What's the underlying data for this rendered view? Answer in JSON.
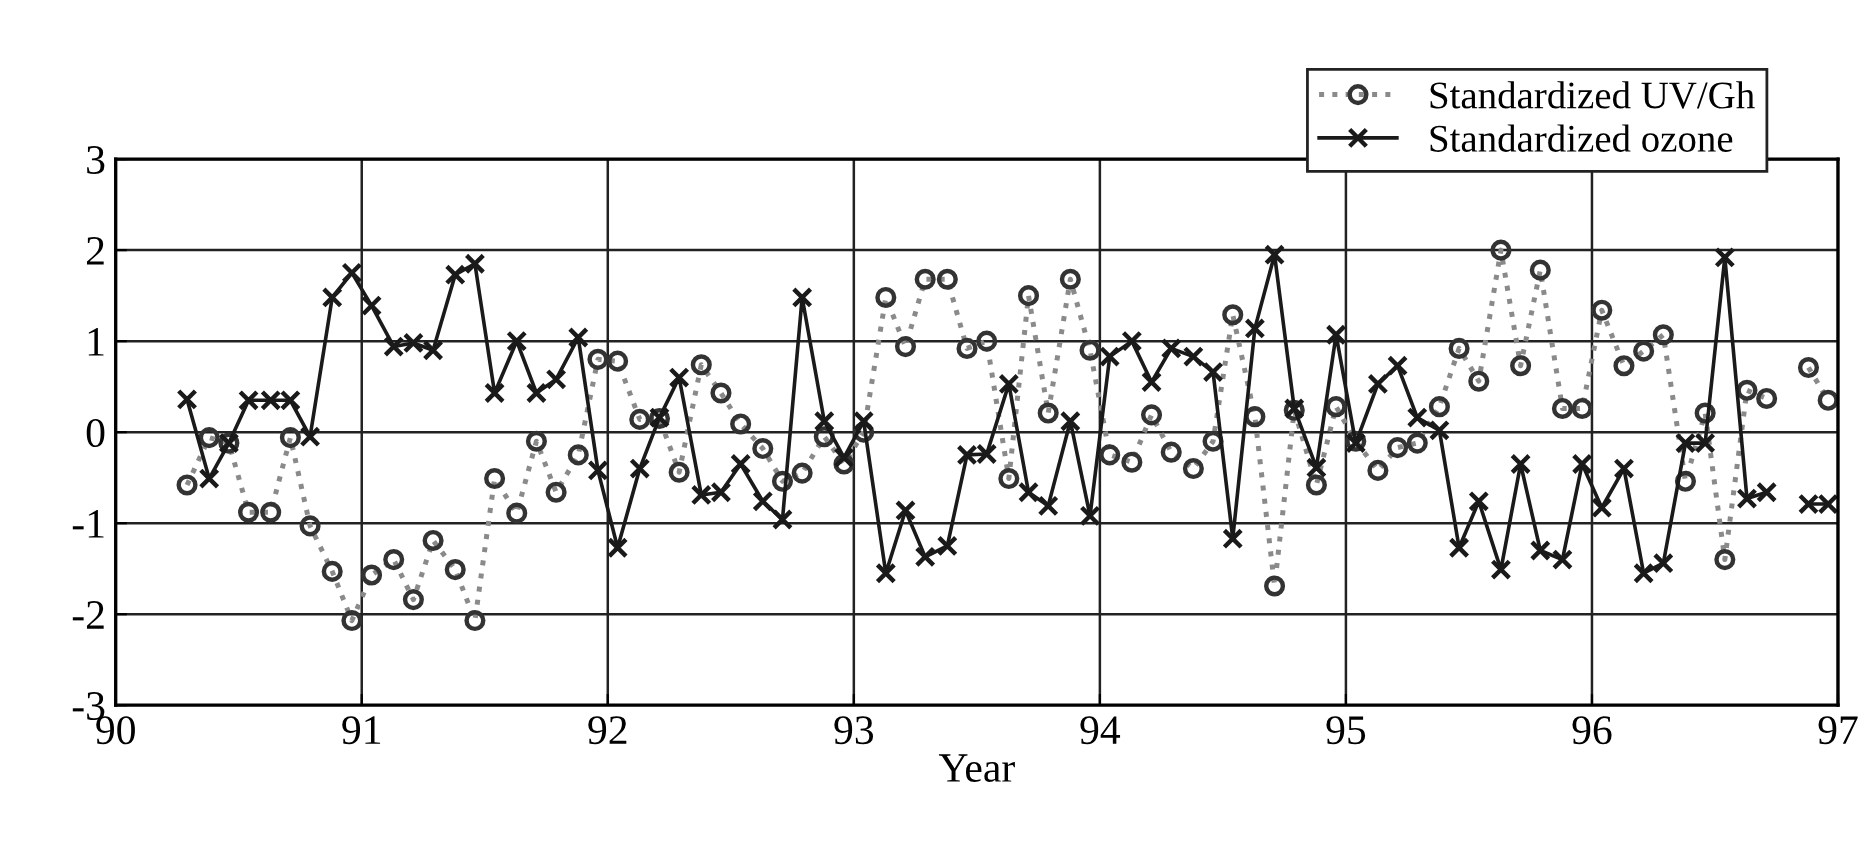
{
  "chart_data": {
    "type": "line",
    "xlabel": "Year",
    "xlim": [
      90,
      97
    ],
    "xticks": [
      90,
      91,
      92,
      93,
      94,
      95,
      96,
      97
    ],
    "ylim": [
      -3,
      3
    ],
    "yticks": [
      -3,
      -2,
      -1,
      0,
      1,
      2,
      3
    ],
    "grid": true,
    "legend": "top right",
    "x": [
      90.29,
      90.38,
      90.46,
      90.54,
      90.63,
      90.71,
      90.79,
      90.88,
      90.96,
      91.04,
      91.13,
      91.21,
      91.29,
      91.38,
      91.46,
      91.54,
      91.63,
      91.71,
      91.79,
      91.88,
      91.96,
      92.04,
      92.13,
      92.21,
      92.29,
      92.38,
      92.46,
      92.54,
      92.63,
      92.71,
      92.79,
      92.88,
      92.96,
      93.04,
      93.13,
      93.21,
      93.29,
      93.38,
      93.46,
      93.54,
      93.63,
      93.71,
      93.79,
      93.88,
      93.96,
      94.04,
      94.13,
      94.21,
      94.29,
      94.38,
      94.46,
      94.54,
      94.63,
      94.71,
      94.79,
      94.88,
      94.96,
      95.04,
      95.13,
      95.21,
      95.29,
      95.38,
      95.46,
      95.54,
      95.63,
      95.71,
      95.79,
      95.88,
      95.96,
      96.04,
      96.13,
      96.21,
      96.29,
      96.38,
      96.46,
      96.54,
      96.63,
      96.71,
      96.79,
      96.88,
      96.96
    ],
    "series": [
      {
        "name": "Standardized UV/Gh",
        "color": "#8a8a8a",
        "marker": "circle",
        "line_style": "dotted",
        "values": [
          -0.58,
          -0.06,
          -0.12,
          -0.88,
          -0.88,
          -0.06,
          -1.03,
          -1.53,
          -2.07,
          -1.57,
          -1.4,
          -1.84,
          -1.19,
          -1.51,
          -2.07,
          -0.51,
          -0.89,
          -0.1,
          -0.66,
          -0.25,
          0.8,
          0.78,
          0.14,
          0.15,
          -0.44,
          0.74,
          0.43,
          0.09,
          -0.18,
          -0.54,
          -0.45,
          -0.05,
          -0.35,
          0.0,
          1.48,
          0.94,
          1.68,
          1.68,
          0.92,
          1.0,
          -0.51,
          1.5,
          0.21,
          1.68,
          0.9,
          -0.25,
          -0.33,
          0.19,
          -0.22,
          -0.4,
          -0.1,
          1.29,
          0.17,
          -1.69,
          0.24,
          -0.58,
          0.28,
          -0.1,
          -0.42,
          -0.17,
          -0.12,
          0.28,
          0.92,
          0.56,
          2.0,
          0.73,
          1.78,
          0.26,
          0.26,
          1.34,
          0.73,
          0.89,
          1.07,
          -0.54,
          0.21,
          -1.4,
          0.46,
          0.37,
          null,
          0.71,
          0.35
        ]
      },
      {
        "name": "Standardized ozone",
        "color": "#1a1a1a",
        "marker": "cross",
        "line_style": "solid",
        "values": [
          0.36,
          -0.51,
          -0.12,
          0.35,
          0.35,
          0.35,
          -0.05,
          1.48,
          1.75,
          1.39,
          0.94,
          0.98,
          0.9,
          1.73,
          1.85,
          0.43,
          1.0,
          0.43,
          0.58,
          1.04,
          -0.42,
          -1.27,
          -0.4,
          0.16,
          0.6,
          -0.69,
          -0.66,
          -0.35,
          -0.76,
          -0.96,
          1.48,
          0.12,
          -0.28,
          0.12,
          -1.55,
          -0.86,
          -1.37,
          -1.25,
          -0.25,
          -0.24,
          0.53,
          -0.66,
          -0.81,
          0.12,
          -0.92,
          0.83,
          1.0,
          0.55,
          0.92,
          0.83,
          0.66,
          -1.17,
          1.14,
          1.95,
          0.26,
          -0.39,
          1.07,
          -0.12,
          0.53,
          0.73,
          0.16,
          0.02,
          -1.27,
          -0.76,
          -1.51,
          -0.35,
          -1.3,
          -1.4,
          -0.35,
          -0.83,
          -0.4,
          -1.55,
          -1.44,
          -0.12,
          -0.12,
          1.92,
          -0.73,
          -0.66,
          null,
          -0.79,
          -0.79
        ]
      }
    ]
  }
}
